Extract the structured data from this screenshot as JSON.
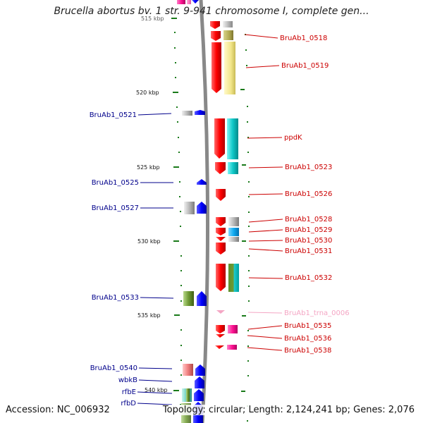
{
  "title": "Brucella abortus bv. 1 str. 9-941 chromosome I, complete gen...",
  "footer": {
    "accession": "Accession: NC_006932",
    "topology": "Topology: circular; Length: 2,124,241 bp; Genes: 2,076"
  },
  "colors": {
    "left_label": "#00008b",
    "right_label": "#cc0000",
    "trna_label": "#f4a6c4",
    "backbone": "#888888",
    "tick": "#1a7a1a"
  },
  "ticks": [
    {
      "label": "515 kbp"
    },
    {
      "label": "520 kbp"
    },
    {
      "label": "525 kbp"
    },
    {
      "label": "530 kbp"
    },
    {
      "label": "535 kbp"
    },
    {
      "label": "540 kbp"
    }
  ],
  "left_labels": [
    {
      "text": "BruAb1_0521"
    },
    {
      "text": "BruAb1_0525"
    },
    {
      "text": "BruAb1_0527"
    },
    {
      "text": "BruAb1_0533"
    },
    {
      "text": "BruAb1_0540"
    },
    {
      "text": "wbkB"
    },
    {
      "text": "rfbE"
    },
    {
      "text": "rfbD"
    }
  ],
  "right_labels": [
    {
      "text": "BruAb1_0518"
    },
    {
      "text": "BruAb1_0519"
    },
    {
      "text": "ppdK"
    },
    {
      "text": "BruAb1_0523"
    },
    {
      "text": "BruAb1_0526"
    },
    {
      "text": "BruAb1_0528"
    },
    {
      "text": "BruAb1_0529"
    },
    {
      "text": "BruAb1_0530"
    },
    {
      "text": "BruAb1_0531"
    },
    {
      "text": "BruAb1_0532"
    },
    {
      "text": "BruAb1_trna_0006"
    },
    {
      "text": "BruAb1_0535"
    },
    {
      "text": "BruAb1_0536"
    },
    {
      "text": "BruAb1_0538"
    }
  ]
}
